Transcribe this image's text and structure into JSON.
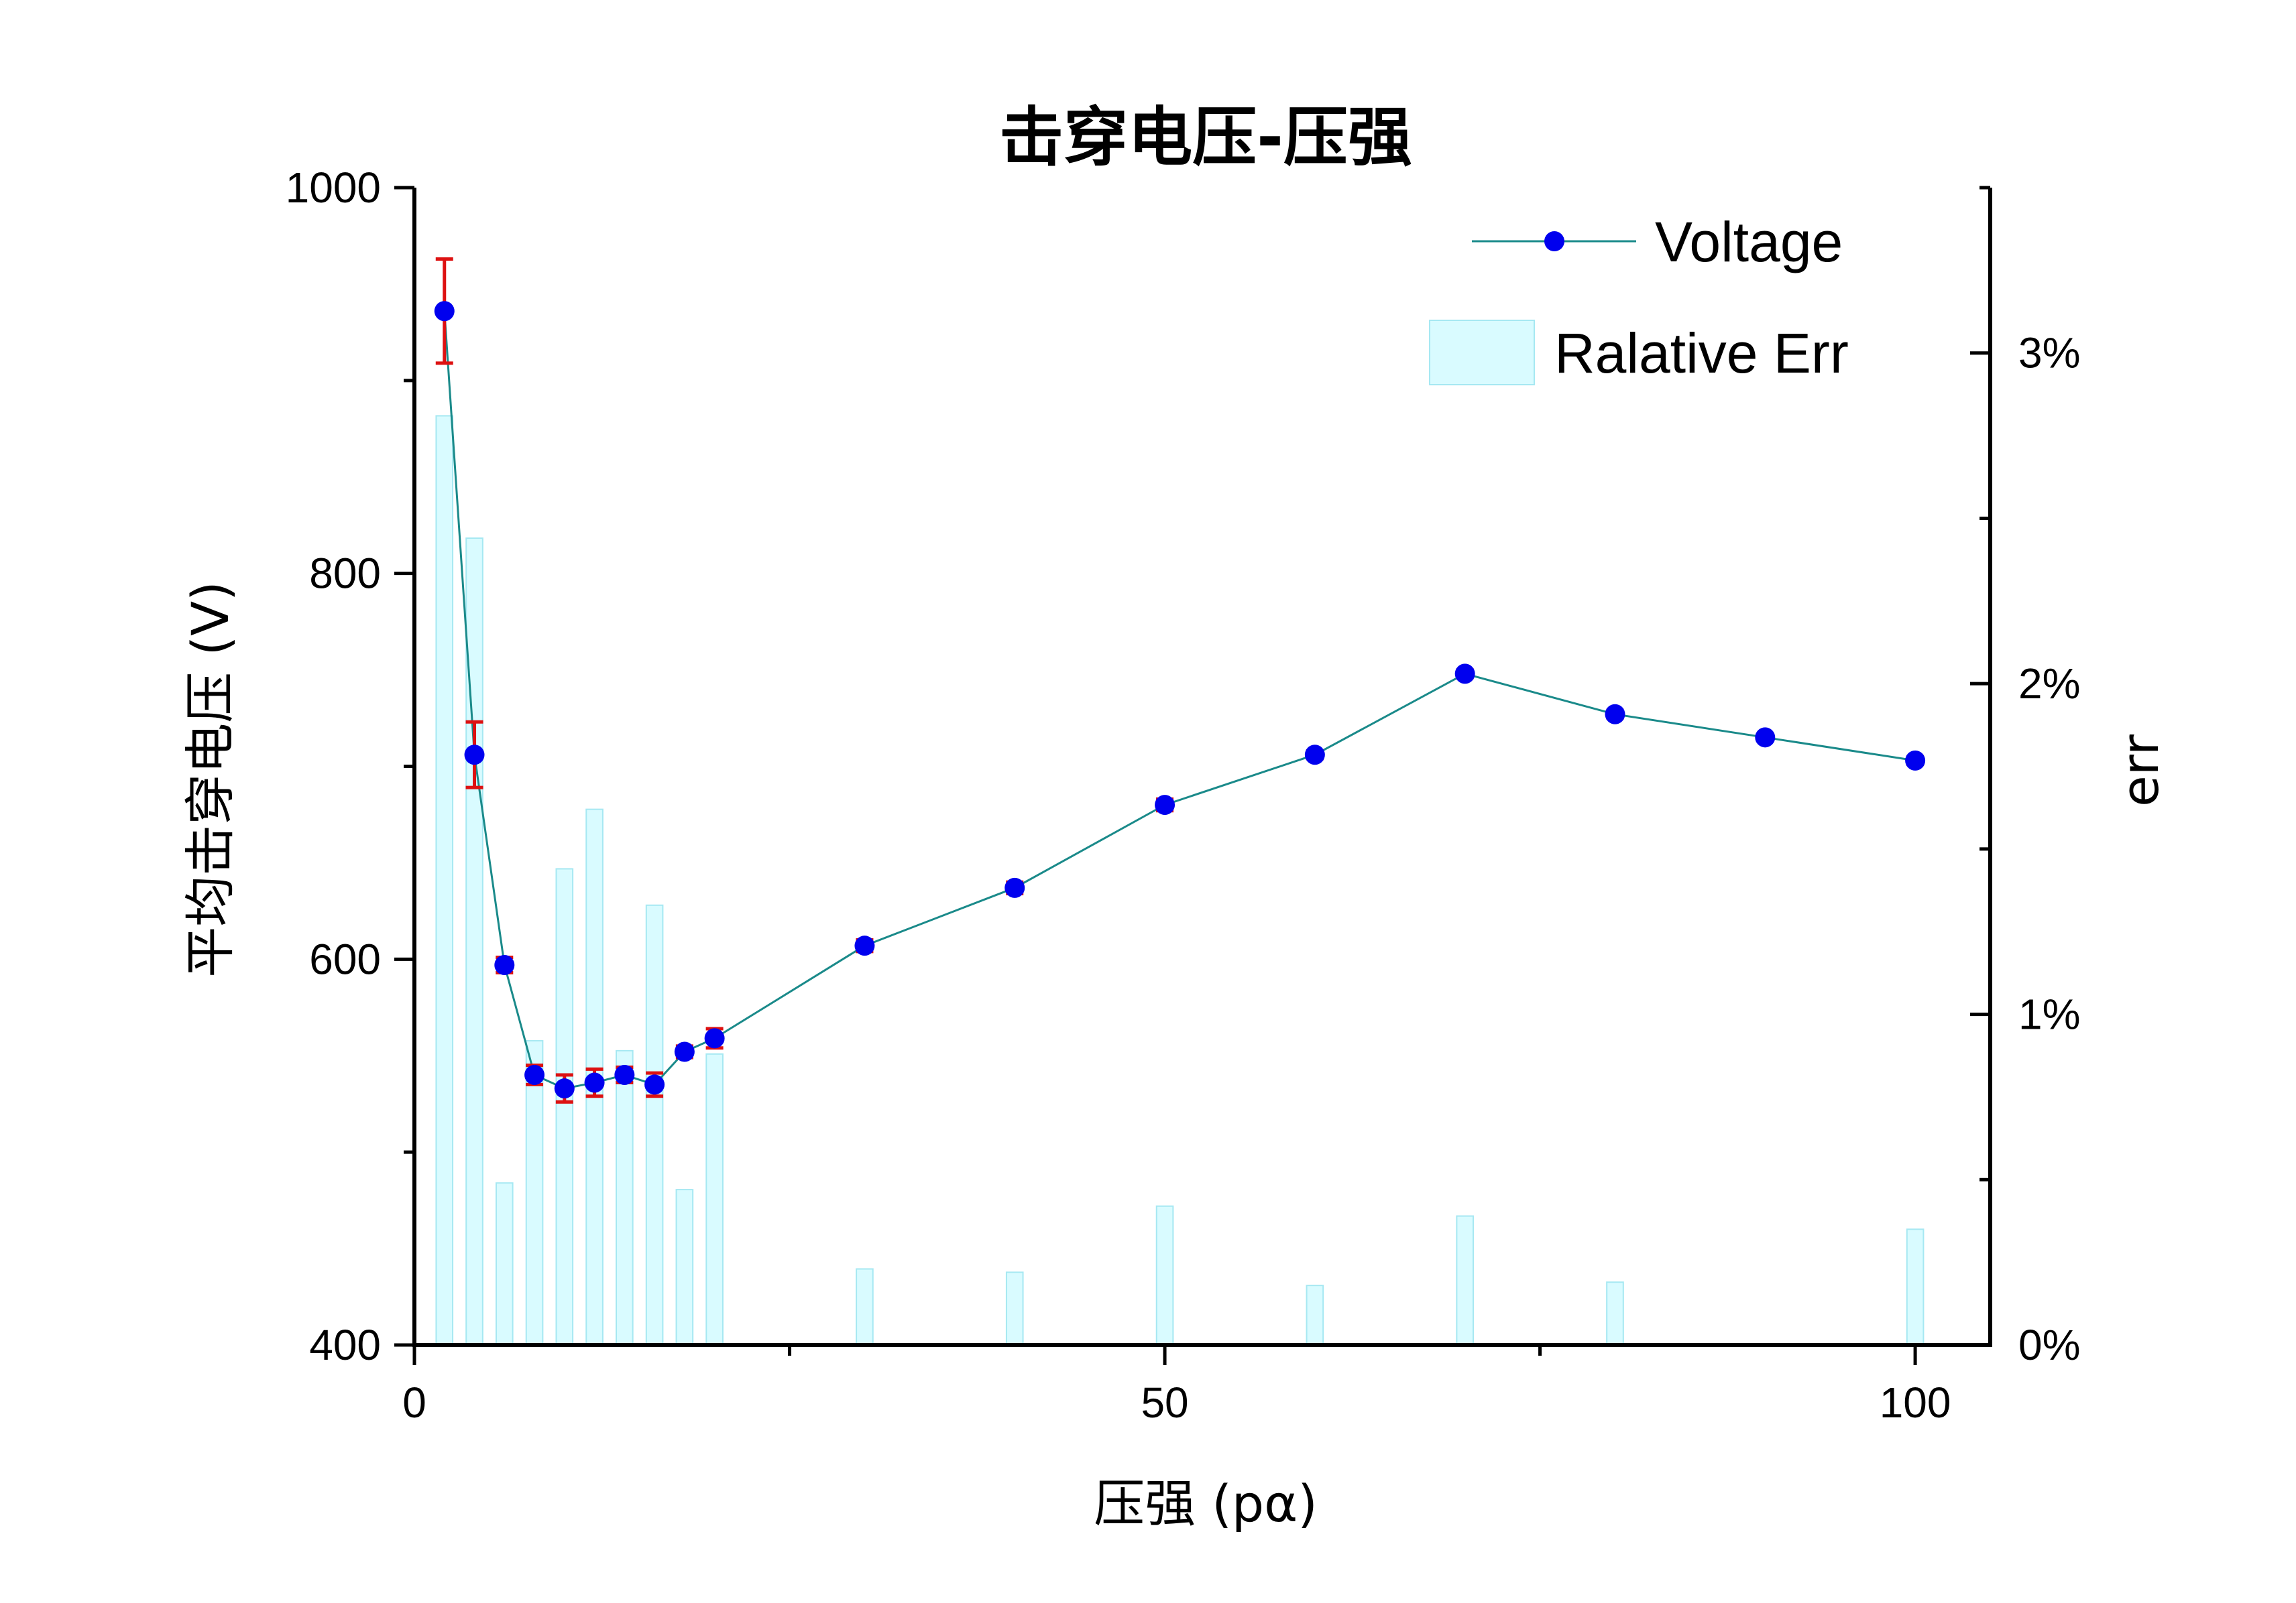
{
  "chart_data": {
    "type": "line+bar",
    "title": "击穿电压-压强",
    "xlabel": "压强 (pα)",
    "ylabel": "平均击穿电压 (V)",
    "y2label": "err",
    "xlim": [
      0,
      105
    ],
    "ylim": [
      400,
      1000
    ],
    "y2lim": [
      0,
      3.5
    ],
    "x_ticks": [
      "0",
      "50",
      "100"
    ],
    "y_ticks": [
      "400",
      "600",
      "800",
      "1000"
    ],
    "y2_ticks": [
      "0%",
      "1%",
      "2%",
      "3%"
    ],
    "legend_position": "top-right",
    "colors": {
      "line": "#1a8a8a",
      "marker": "#0000ee",
      "error_bar": "#dd1111",
      "bar_fill": "#d9fbff",
      "bar_stroke": "#a6e8f2"
    },
    "series": [
      {
        "name": "Voltage",
        "type": "line",
        "axis": "left",
        "x": [
          2,
          4,
          6,
          8,
          10,
          12,
          14,
          16,
          18,
          20,
          30,
          40,
          50,
          60,
          70,
          80,
          90,
          100
        ],
        "y": [
          936,
          706,
          597,
          540,
          533,
          536,
          540,
          535,
          552,
          559,
          607,
          637,
          680,
          706,
          748,
          727,
          715,
          703
        ],
        "err": [
          27,
          17,
          4,
          5,
          7,
          7,
          4,
          6,
          3,
          5,
          3,
          3,
          3,
          2,
          2,
          2,
          1,
          2
        ]
      },
      {
        "name": "Ralative Err",
        "type": "bar",
        "axis": "right",
        "x": [
          2,
          4,
          6,
          8,
          10,
          12,
          14,
          16,
          18,
          20,
          30,
          40,
          50,
          60,
          70,
          80,
          90,
          100
        ],
        "y": [
          2.81,
          2.44,
          0.49,
          0.92,
          1.44,
          1.62,
          0.89,
          1.33,
          0.47,
          0.88,
          0.23,
          0.22,
          0.42,
          0.18,
          0.39,
          0.19,
          0.0,
          0.35
        ]
      }
    ]
  }
}
